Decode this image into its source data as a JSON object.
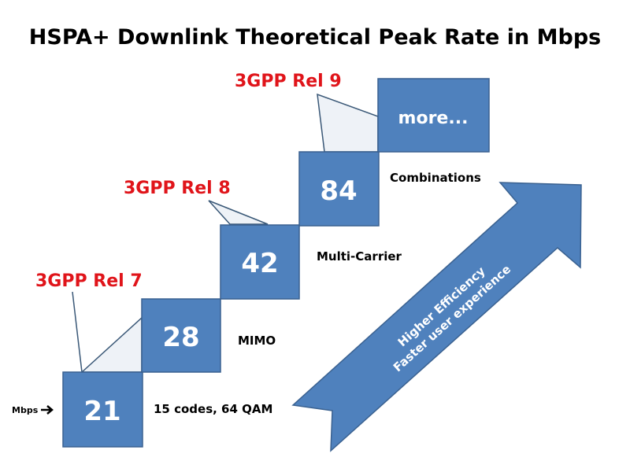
{
  "title": "HSPA+ Downlink Theoretical Peak Rate in Mbps",
  "unit_label": "Mbps",
  "steps": [
    {
      "rate": "21",
      "feature": "15 codes, 64 QAM"
    },
    {
      "rate": "28",
      "feature": "MIMO"
    },
    {
      "rate": "42",
      "feature": "Multi-Carrier"
    },
    {
      "rate": "84",
      "feature": "Combinations"
    },
    {
      "rate": "more..."
    }
  ],
  "releases": [
    "3GPP Rel 7",
    "3GPP Rel 8",
    "3GPP Rel 9"
  ],
  "arrow": {
    "line1": "Higher Efficiency",
    "line2": "Faster user experience"
  },
  "colors": {
    "box": "#4f81bd",
    "release": "#e0141a"
  }
}
